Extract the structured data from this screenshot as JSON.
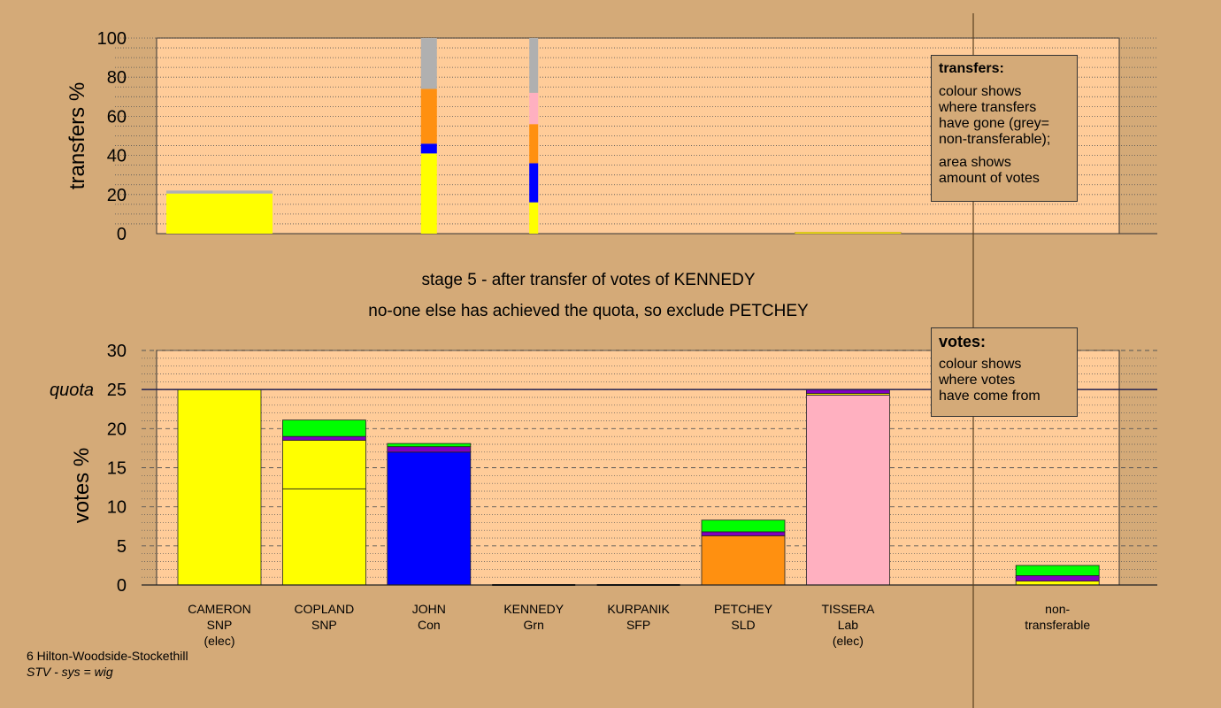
{
  "colors": {
    "background": "#d4aa78",
    "plot_bg": "#ffcc99",
    "SNP": "#ffff00",
    "Con": "#0000ff",
    "Grn": "#00ff00",
    "SFP": "#8000c0",
    "SLD": "#ff9010",
    "Lab": "#ffb0c0",
    "nontransferable": "#b0b0b0"
  },
  "stage": {
    "line1": "stage 5 - after transfer of votes of KENNEDY",
    "line2": "no-one else has achieved the quota, so exclude PETCHEY"
  },
  "legend_transfers": {
    "title": "transfers:",
    "lines": [
      "colour shows",
      "where transfers",
      "have gone (grey=",
      "non-transferable);"
    ],
    "lines2": [
      "area shows",
      "amount of votes"
    ]
  },
  "legend_votes": {
    "title": "votes:",
    "lines": [
      "colour shows",
      "where votes",
      "have come from"
    ]
  },
  "footer": {
    "line1": "6 Hilton-Woodside-Stockethill",
    "line2": "STV - sys = wig"
  },
  "candidates": [
    {
      "name": "CAMERON",
      "party": "SNP",
      "note": "(elec)"
    },
    {
      "name": "COPLAND",
      "party": "SNP",
      "note": ""
    },
    {
      "name": "JOHN",
      "party": "Con",
      "note": ""
    },
    {
      "name": "KENNEDY",
      "party": "Grn",
      "note": ""
    },
    {
      "name": "KURPANIK",
      "party": "SFP",
      "note": ""
    },
    {
      "name": "PETCHEY",
      "party": "SLD",
      "note": ""
    },
    {
      "name": "TISSERA",
      "party": "Lab",
      "note": "(elec)"
    },
    {
      "name": "",
      "party": "",
      "note": ""
    },
    {
      "name": "non-",
      "party": "transferable",
      "note": ""
    }
  ],
  "chart_data": [
    {
      "type": "bar",
      "title": "transfers",
      "ylabel": "transfers %",
      "ylim": [
        0,
        100
      ],
      "yticks": [
        0,
        20,
        40,
        60,
        80,
        100
      ],
      "grid": "dotted",
      "bars": [
        {
          "from": "CAMERON",
          "segments": [
            {
              "to": "SNP",
              "value": 20.5
            },
            {
              "to": "nontransferable",
              "value": 1.5
            }
          ]
        },
        {
          "from": "JOHN",
          "segments": [
            {
              "to": "SNP",
              "value": 41
            },
            {
              "to": "Con",
              "value": 5
            },
            {
              "to": "SLD",
              "value": 28
            },
            {
              "to": "nontransferable",
              "value": 26
            }
          ]
        },
        {
          "from": "KENNEDY",
          "segments": [
            {
              "to": "SNP",
              "value": 16
            },
            {
              "to": "Con",
              "value": 20
            },
            {
              "to": "SLD",
              "value": 20
            },
            {
              "to": "Lab",
              "value": 16
            },
            {
              "to": "nontransferable",
              "value": 28
            }
          ]
        },
        {
          "from": "TISSERA",
          "segments": [
            {
              "to": "SNP",
              "value": 0.8
            }
          ]
        }
      ]
    },
    {
      "type": "bar",
      "title": "votes",
      "ylabel": "votes %",
      "ylim": [
        0,
        30
      ],
      "yticks": [
        0,
        5,
        10,
        15,
        20,
        25,
        30
      ],
      "quota_label": "quota",
      "quota": 25,
      "grid": "dashed",
      "bars": [
        {
          "candidate": "CAMERON",
          "segments": [
            {
              "from": "SNP",
              "value": 25
            }
          ]
        },
        {
          "candidate": "COPLAND",
          "segments": [
            {
              "from": "SNP",
              "value": 12.3
            },
            {
              "from": "SNP",
              "value": 6.2
            },
            {
              "from": "SFP",
              "value": 0.5
            },
            {
              "from": "Grn",
              "value": 2.1
            }
          ]
        },
        {
          "candidate": "JOHN",
          "segments": [
            {
              "from": "Con",
              "value": 17
            },
            {
              "from": "SFP",
              "value": 0.7
            },
            {
              "from": "Grn",
              "value": 0.4
            }
          ]
        },
        {
          "candidate": "KENNEDY",
          "segments": [
            {
              "from": "Grn",
              "value": 0
            }
          ]
        },
        {
          "candidate": "KURPANIK",
          "segments": [
            {
              "from": "SFP",
              "value": 0
            }
          ]
        },
        {
          "candidate": "PETCHEY",
          "segments": [
            {
              "from": "SLD",
              "value": 6.3
            },
            {
              "from": "SFP",
              "value": 0.5
            },
            {
              "from": "Grn",
              "value": 1.5
            }
          ]
        },
        {
          "candidate": "TISSERA",
          "segments": [
            {
              "from": "Lab",
              "value": 24.3
            },
            {
              "from": "SNP",
              "value": 0.2
            },
            {
              "from": "SFP",
              "value": 0.5
            }
          ]
        },
        {
          "candidate": "",
          "segments": []
        },
        {
          "candidate": "non-transferable",
          "segments": [
            {
              "from": "SNP",
              "value": 0.5
            },
            {
              "from": "SFP",
              "value": 0.7
            },
            {
              "from": "Grn",
              "value": 1.3
            }
          ]
        }
      ]
    }
  ]
}
